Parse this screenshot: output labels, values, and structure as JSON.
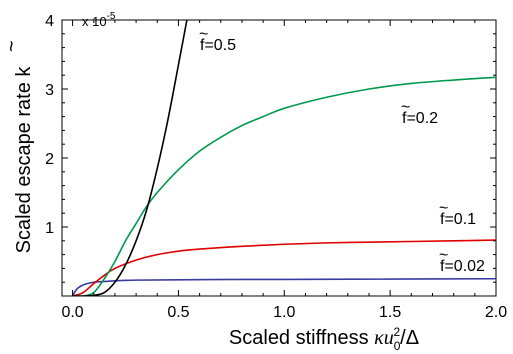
{
  "chart_data": {
    "type": "line",
    "xlabel": "Scaled stiffness κu₀²/Δ",
    "xlabel_parts": {
      "prefix": "Scaled stiffness ",
      "kappa": "κ",
      "u": "u",
      "sub": "0",
      "sup": "2",
      "slash_delta": "/Δ"
    },
    "ylabel": "Scaled escape rate k̃",
    "ylabel_parts": {
      "text": "Scaled escape rate ",
      "symbol": "k"
    },
    "y_multiplier": "x 10",
    "y_multiplier_exp": "-5",
    "xlim": [
      -0.05,
      2.0
    ],
    "ylim": [
      0,
      4
    ],
    "x_ticks": [
      0.0,
      0.5,
      1.0,
      1.5,
      2.0
    ],
    "x_tick_labels": [
      "0.0",
      "0.5",
      "1.0",
      "1.5",
      "2.0"
    ],
    "y_ticks": [
      1,
      2,
      3,
      4
    ],
    "y_tick_labels": [
      "1",
      "2",
      "3",
      "4"
    ],
    "grid": false,
    "series": [
      {
        "name": "f=0.5",
        "label_symbol": "f",
        "label_value": "=0.5",
        "color": "#000000",
        "x": [
          0.0,
          0.05,
          0.1,
          0.15,
          0.2,
          0.25,
          0.3,
          0.35,
          0.4,
          0.45,
          0.5,
          0.54
        ],
        "y": [
          0.0,
          0.0,
          0.01,
          0.05,
          0.2,
          0.45,
          0.8,
          1.25,
          1.85,
          2.55,
          3.35,
          4.0
        ]
      },
      {
        "name": "f=0.2",
        "label_symbol": "f",
        "label_value": "=0.2",
        "color": "#009a4c",
        "x": [
          0.0,
          0.05,
          0.1,
          0.15,
          0.2,
          0.25,
          0.3,
          0.35,
          0.4,
          0.5,
          0.6,
          0.7,
          0.8,
          0.9,
          1.0,
          1.2,
          1.4,
          1.6,
          1.8,
          2.0
        ],
        "y": [
          0.0,
          0.0,
          0.05,
          0.25,
          0.5,
          0.8,
          1.05,
          1.3,
          1.5,
          1.83,
          2.1,
          2.3,
          2.47,
          2.6,
          2.72,
          2.88,
          3.0,
          3.08,
          3.13,
          3.17
        ]
      },
      {
        "name": "f=0.1",
        "label_symbol": "f",
        "label_value": "=0.1",
        "color": "#e00000",
        "x": [
          0.0,
          0.05,
          0.1,
          0.15,
          0.2,
          0.3,
          0.4,
          0.5,
          0.6,
          0.8,
          1.0,
          1.2,
          1.4,
          1.6,
          1.8,
          2.0
        ],
        "y": [
          0.0,
          0.05,
          0.18,
          0.3,
          0.4,
          0.52,
          0.6,
          0.65,
          0.68,
          0.72,
          0.75,
          0.77,
          0.78,
          0.79,
          0.8,
          0.81
        ]
      },
      {
        "name": "f=0.02",
        "label_symbol": "f",
        "label_value": "=0.02",
        "color": "#3a3aa0",
        "x": [
          0.0,
          0.02,
          0.05,
          0.1,
          0.15,
          0.2,
          0.3,
          0.5,
          0.8,
          1.0,
          1.5,
          2.0
        ],
        "y": [
          0.0,
          0.1,
          0.16,
          0.2,
          0.21,
          0.22,
          0.23,
          0.235,
          0.24,
          0.24,
          0.245,
          0.25
        ]
      }
    ]
  }
}
